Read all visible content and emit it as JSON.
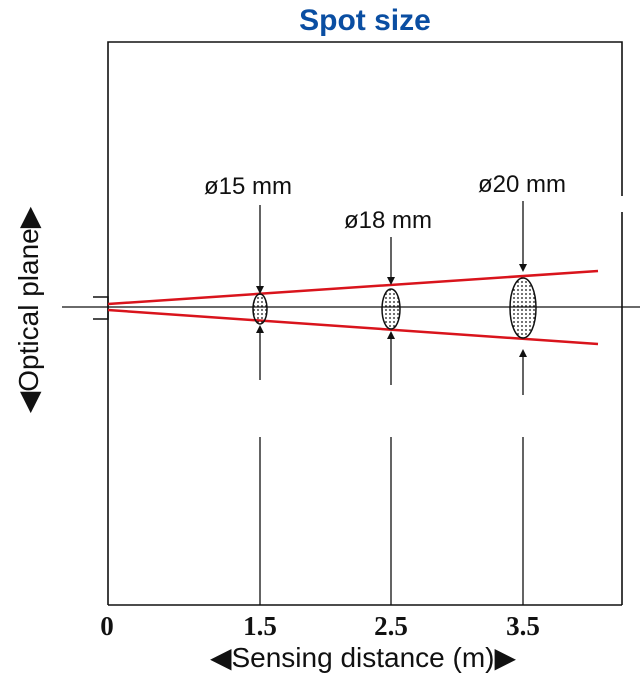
{
  "title": "Spot size",
  "y_axis_label": "◀Optical plane▶",
  "x_axis_label": "◀Sensing distance (m)▶",
  "ticks": [
    {
      "value": 0,
      "label": "0"
    },
    {
      "value": 1.5,
      "label": "1.5"
    },
    {
      "value": 2.5,
      "label": "2.5"
    },
    {
      "value": 3.5,
      "label": "3.5"
    }
  ],
  "spots": [
    {
      "distance_m": 1.5,
      "label": "ø15 mm",
      "diameter_mm": 15
    },
    {
      "distance_m": 2.5,
      "label": "ø18 mm",
      "diameter_mm": 18
    },
    {
      "distance_m": 3.5,
      "label": "ø20 mm",
      "diameter_mm": 20
    }
  ],
  "colors": {
    "title": "#0a4ea2",
    "beam": "#d9141c",
    "line": "#111111"
  }
}
